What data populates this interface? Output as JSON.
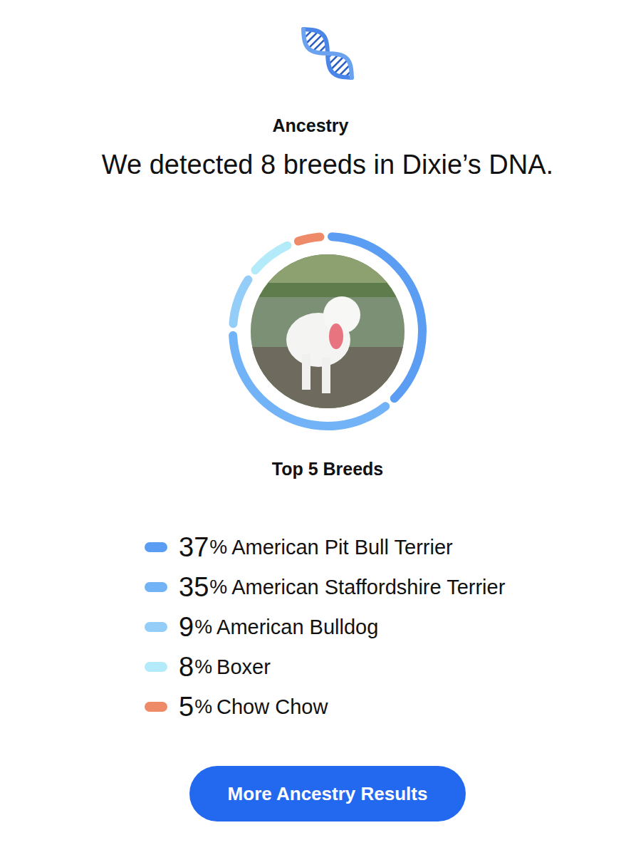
{
  "chart_data": {
    "type": "pie",
    "subtitle": "Ancestry",
    "title": "We detected 8 breeds in Dixie’s DNA.",
    "legend_title": "Top 5 Breeds",
    "categories": [
      "American Pit Bull Terrier",
      "American Staffordshire Terrier",
      "American Bulldog",
      "Boxer",
      "Chow Chow"
    ],
    "values": [
      37,
      35,
      9,
      8,
      5
    ],
    "value_labels": [
      "37%",
      "35%",
      "9%",
      "8%",
      "5%"
    ],
    "colors": [
      "#5b9df3",
      "#72b2f6",
      "#94cdf8",
      "#b4ebfb",
      "#ef8a68"
    ],
    "button": "More Ancestry Results"
  }
}
